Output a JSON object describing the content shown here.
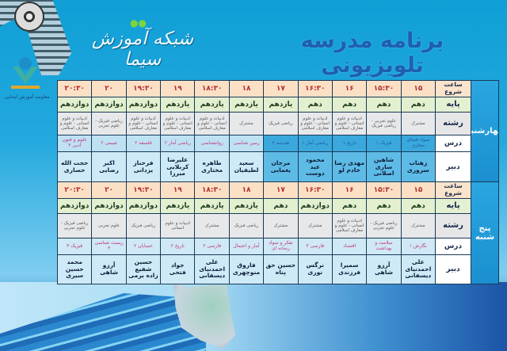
{
  "header": {
    "title": "برنامه مدرسه تلویزیونی",
    "brand_logo": "شبکه آموزش سیما",
    "edu_logo": "معاونت آموزش ابتدایی"
  },
  "row_labels": [
    "ساعت شروع",
    "پایه",
    "رشته",
    "درس",
    "دبیر"
  ],
  "days": [
    {
      "day": "چهارشنبه",
      "columns": [
        {
          "time": "۱۵",
          "paye": "دهم",
          "reshte": "مشترک",
          "dars": "سواد فضای مجازی",
          "dabir": "زهتاب سروری"
        },
        {
          "time": "۱۵:۳۰",
          "paye": "دهم",
          "reshte": "علوم تجربی - ریاضی فیزیک",
          "dars": "فیزیک ۱",
          "dabir": "شاهین ساری اصلانی"
        },
        {
          "time": "۱۶",
          "paye": "دهم",
          "reshte": "ادبیات و علوم انسانی - علوم و معارف اسلامی",
          "dars": "تاریخ ۱",
          "dabir": "مهدی رضا خادم لو"
        },
        {
          "time": "۱۶:۳۰",
          "paye": "دهم",
          "reshte": "ادبیات و علوم انسانی - علوم و معارف اسلامی",
          "dars": "ریاضی آمار ۱",
          "dabir": "محمود عبد دوست"
        },
        {
          "time": "۱۷",
          "paye": "یازدهم",
          "reshte": "ریاضی فیزیک",
          "dars": "هندسه ۲",
          "dabir": "مرجان یغمایی"
        },
        {
          "time": "۱۸",
          "paye": "یازدهم",
          "reshte": "مشترک",
          "dars": "زمین شناسی",
          "dabir": "سعید لطیفیان"
        },
        {
          "time": "۱۸:۳۰",
          "paye": "یازدهم",
          "reshte": "ادبیات و علوم انسانی - علوم و معارف اسلامی",
          "dars": "روانشناسی",
          "dabir": "طاهره مختاری"
        },
        {
          "time": "۱۹",
          "paye": "یازدهم",
          "reshte": "ادبیات و علوم انسانی - علوم و معارف اسلامی",
          "dars": "ریاضی آمار ۲",
          "dabir": "علیرضا کربلایی میرزا"
        },
        {
          "time": "۱۹:۳۰",
          "paye": "دوازدهم",
          "reshte": "ادبیات و علوم انسانی - علوم و معارف اسلامی",
          "dars": "فلسفه ۲",
          "dabir": "فرحناز یزدانی"
        },
        {
          "time": "۲۰",
          "paye": "دوازدهم",
          "reshte": "ریاضی فیزیک - علوم تجربی",
          "dars": "شیمی ۲",
          "dabir": "اکبر رضایی"
        },
        {
          "time": "۲۰:۳۰",
          "paye": "دوازدهم",
          "reshte": "ادبیات و علوم انسانی - علوم و معارف اسلامی",
          "dars": "علوم و فنون ادبی ۳",
          "dabir": "حجت الله حصاری"
        }
      ]
    },
    {
      "day": "پنج شنبه",
      "columns": [
        {
          "time": "۱۵",
          "paye": "دهم",
          "reshte": "مشترک",
          "dars": "نگارش ۱",
          "dabir": "علی احمدنیای دیسفانی"
        },
        {
          "time": "۱۵:۳۰",
          "paye": "دهم",
          "reshte": "ریاضی فیزیک - علوم تجربی",
          "dars": "سلامت و بهداشت",
          "dabir": "آرزو شاهی"
        },
        {
          "time": "۱۶",
          "paye": "دهم",
          "reshte": "ادبیات و علوم انسانی - علوم و معارف اسلامی",
          "dars": "اقتصاد",
          "dabir": "سمیرا فرزندی"
        },
        {
          "time": "۱۶:۳۰",
          "paye": "دوازدهم",
          "reshte": "مشترک",
          "dars": "فارسی ۳",
          "dabir": "نرگس نوری"
        },
        {
          "time": "۱۷",
          "paye": "دهم",
          "reshte": "مشترک",
          "dars": "تفکر و سواد رسانه ای",
          "dabir": "حسین حق پناه"
        },
        {
          "time": "۱۸",
          "paye": "یازدهم",
          "reshte": "ریاضی فیزیک",
          "dars": "آمار و احتمال",
          "dabir": "فاروق منوچهری"
        },
        {
          "time": "۱۸:۳۰",
          "paye": "یازدهم",
          "reshte": "مشترک",
          "dars": "فارسی ۲",
          "dabir": "علی احمدنیای دیسفانی"
        },
        {
          "time": "۱۹",
          "paye": "یازدهم",
          "reshte": "ادبیات و علوم انسانی",
          "dars": "تاریخ ۲",
          "dabir": "جواد فتحی"
        },
        {
          "time": "۱۹:۳۰",
          "paye": "دوازدهم",
          "reshte": "ریاضی فیزیک",
          "dars": "حسابان ۲",
          "dabir": "حسین شفیع زاده برمی"
        },
        {
          "time": "۲۰",
          "paye": "دوازدهم",
          "reshte": "علوم تجربی",
          "dars": "زیست شناسی ۳",
          "dabir": "آرزو شاهی"
        },
        {
          "time": "۲۰:۳۰",
          "paye": "دوازدهم",
          "reshte": "ریاضی فیزیک - علوم تجربی",
          "dars": "فیزیک ۳",
          "dabir": "محمد حسین سیری"
        }
      ]
    }
  ]
}
